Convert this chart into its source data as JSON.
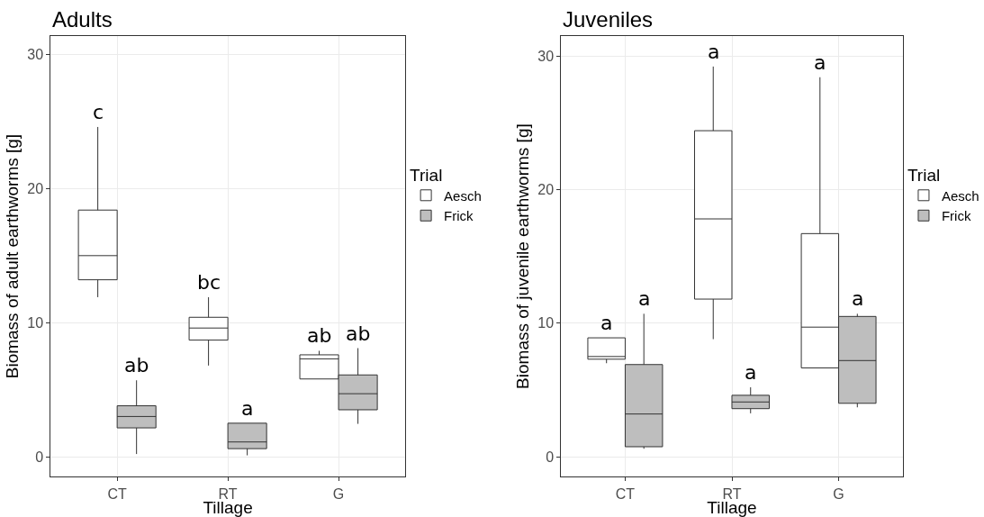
{
  "chart_data": [
    {
      "type": "box",
      "title": "Adults",
      "xlabel": "Tillage",
      "ylabel": "Biomass of adult earthworms [g]",
      "legend_title": "Trial",
      "legend": "right",
      "grid": true,
      "categories": [
        "CT",
        "RT",
        "G"
      ],
      "ylim": [
        -1.5,
        31.4
      ],
      "yticks": [
        0,
        10,
        20,
        30
      ],
      "series": [
        {
          "name": "Aesch",
          "color": "#ffffff",
          "value_labels": [
            "c",
            "bc",
            "ab"
          ],
          "boxes": [
            {
              "low": 11.9,
              "q1": 13.2,
              "median": 15.0,
              "q3": 18.4,
              "high": 24.6
            },
            {
              "low": 6.8,
              "q1": 8.7,
              "median": 9.6,
              "q3": 10.4,
              "high": 11.9
            },
            {
              "low": 5.8,
              "q1": 5.8,
              "median": 7.3,
              "q3": 7.6,
              "high": 7.9
            }
          ]
        },
        {
          "name": "Frick",
          "color": "#bebebe",
          "value_labels": [
            "ab",
            "a",
            "ab"
          ],
          "boxes": [
            {
              "low": 0.2,
              "q1": 2.15,
              "median": 3.0,
              "q3": 3.8,
              "high": 5.7
            },
            {
              "low": 0.1,
              "q1": 0.6,
              "median": 1.1,
              "q3": 2.5,
              "high": 2.5
            },
            {
              "low": 2.45,
              "q1": 3.5,
              "median": 4.7,
              "q3": 6.1,
              "high": 8.1
            }
          ]
        }
      ]
    },
    {
      "type": "box",
      "title": "Juveniles",
      "xlabel": "Tillage",
      "ylabel": "Biomass of juvenile earthworms [g]",
      "legend_title": "Trial",
      "legend": "right",
      "grid": true,
      "categories": [
        "CT",
        "RT",
        "G"
      ],
      "ylim": [
        -1.5,
        31.5
      ],
      "yticks": [
        0,
        10,
        20,
        30
      ],
      "series": [
        {
          "name": "Aesch",
          "color": "#ffffff",
          "value_labels": [
            "a",
            "a",
            "a"
          ],
          "boxes": [
            {
              "low": 7.0,
              "q1": 7.3,
              "median": 7.5,
              "q3": 8.9,
              "high": 8.9
            },
            {
              "low": 8.8,
              "q1": 11.8,
              "median": 17.8,
              "q3": 24.4,
              "high": 29.2
            },
            {
              "low": 6.65,
              "q1": 6.65,
              "median": 9.7,
              "q3": 16.7,
              "high": 28.4
            }
          ]
        },
        {
          "name": "Frick",
          "color": "#bebebe",
          "value_labels": [
            "a",
            "a",
            "a"
          ],
          "boxes": [
            {
              "low": 0.6,
              "q1": 0.75,
              "median": 3.2,
              "q3": 6.9,
              "high": 10.7
            },
            {
              "low": 3.25,
              "q1": 3.6,
              "median": 4.1,
              "q3": 4.6,
              "high": 5.2
            },
            {
              "low": 3.7,
              "q1": 4.0,
              "median": 7.2,
              "q3": 10.5,
              "high": 10.7
            }
          ]
        }
      ]
    }
  ]
}
